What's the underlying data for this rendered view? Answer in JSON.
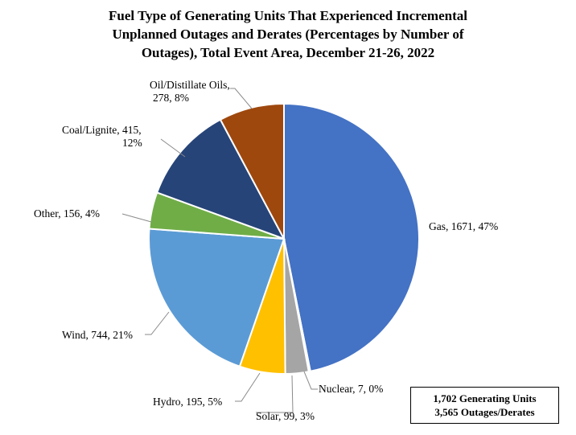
{
  "chart_data": {
    "type": "pie",
    "title_lines": [
      "Fuel Type of Generating Units That Experienced Incremental",
      "Unplanned Outages and Derates (Percentages by Number of",
      "Outages), Total Event Area, December 21-26, 2022"
    ],
    "slices": [
      {
        "category": "Gas",
        "value": 1671,
        "percent": "47%",
        "label_lines": [
          "Gas, 1671, 47%"
        ],
        "color": "#4472C4"
      },
      {
        "category": "Nuclear",
        "value": 7,
        "percent": "0%",
        "label_lines": [
          "Nuclear, 7, 0%"
        ],
        "color": "#A5A5A5"
      },
      {
        "category": "Solar",
        "value": 99,
        "percent": "3%",
        "label_lines": [
          "Solar, 99, 3%"
        ],
        "color": "#A5A5A5"
      },
      {
        "category": "Hydro",
        "value": 195,
        "percent": "5%",
        "label_lines": [
          "Hydro, 195, 5%"
        ],
        "color": "#FFC000"
      },
      {
        "category": "Wind",
        "value": 744,
        "percent": "21%",
        "label_lines": [
          "Wind, 744, 21%"
        ],
        "color": "#5B9BD5"
      },
      {
        "category": "Other",
        "value": 156,
        "percent": "4%",
        "label_lines": [
          "Other, 156, 4%"
        ],
        "color": "#70AD47"
      },
      {
        "category": "Coal/Lignite",
        "value": 415,
        "percent": "12%",
        "label_lines": [
          "Coal/Lignite, 415,",
          "12%"
        ],
        "color": "#264478"
      },
      {
        "category": "Oil/Distillate Oils",
        "value": 278,
        "percent": "8%",
        "label_lines": [
          "Oil/Distillate Oils,",
          "278, 8%"
        ],
        "color": "#9E480E"
      }
    ]
  },
  "summary_box": {
    "line1": "1,702 Generating Units",
    "line2": "3,565 Outages/Derates"
  }
}
